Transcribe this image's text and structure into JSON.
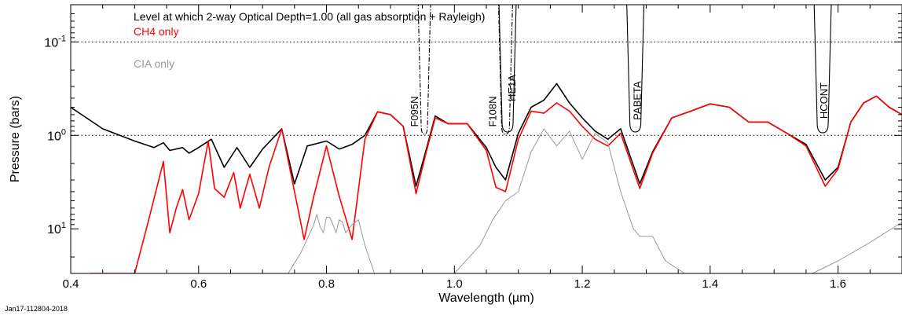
{
  "chart_data": {
    "type": "line",
    "title": "Level at which 2-way Optical Depth=1.00 (all gas absorption + Rayleigh)",
    "xlabel": "Wavelength (µm)",
    "ylabel": "Pressure (bars)",
    "xlim": [
      0.4,
      1.7
    ],
    "ylim_log_bars": [
      0.04,
      30
    ],
    "y_reversed": true,
    "y_scale": "log",
    "grid": false,
    "x_ticks": [
      0.4,
      0.6,
      0.8,
      1.0,
      1.2,
      1.4,
      1.6
    ],
    "x_tick_labels": [
      "0.4",
      "0.6",
      "0.8",
      "1.0",
      "1.2",
      "1.4",
      "1.6"
    ],
    "y_tick_labels": [
      {
        "value": 0.1,
        "base": "10",
        "exp": "-1"
      },
      {
        "value": 1,
        "base": "10",
        "exp": "0"
      },
      {
        "value": 10,
        "base": "10",
        "exp": "1"
      }
    ],
    "reference_lines": [
      {
        "pressure": 0.1,
        "style": "dotted"
      },
      {
        "pressure": 1.0,
        "style": "dotted"
      }
    ],
    "series": [
      {
        "name": "all gas absorption + Rayleigh",
        "color": "#000000",
        "x": [
          0.4,
          0.45,
          0.5,
          0.53,
          0.545,
          0.555,
          0.575,
          0.585,
          0.6,
          0.62,
          0.64,
          0.66,
          0.68,
          0.7,
          0.73,
          0.75,
          0.77,
          0.8,
          0.82,
          0.84,
          0.86,
          0.88,
          0.9,
          0.92,
          0.94,
          0.955,
          0.97,
          0.99,
          1.02,
          1.05,
          1.065,
          1.08,
          1.1,
          1.12,
          1.14,
          1.16,
          1.18,
          1.2,
          1.22,
          1.24,
          1.26,
          1.29,
          1.31,
          1.34,
          1.37,
          1.4,
          1.43,
          1.46,
          1.49,
          1.52,
          1.55,
          1.58,
          1.6,
          1.62,
          1.64,
          1.66,
          1.68,
          1.7
        ],
        "y": [
          0.5,
          0.85,
          1.15,
          1.35,
          1.2,
          1.45,
          1.35,
          1.55,
          1.35,
          1.1,
          2.2,
          1.35,
          2.2,
          1.4,
          0.85,
          3.3,
          1.3,
          1.15,
          1.4,
          1.25,
          1.0,
          0.56,
          0.6,
          0.8,
          3.5,
          1.5,
          0.62,
          0.75,
          0.75,
          1.35,
          2.2,
          3.0,
          0.95,
          0.5,
          0.42,
          0.28,
          0.45,
          0.65,
          0.9,
          1.1,
          0.85,
          3.3,
          1.5,
          0.65,
          0.55,
          0.46,
          0.5,
          0.72,
          0.72,
          0.95,
          1.25,
          3.0,
          2.2,
          0.72,
          0.45,
          0.38,
          0.5,
          0.6
        ]
      },
      {
        "name": "CH4 only",
        "color": "#ff0000",
        "x": [
          0.43,
          0.47,
          0.5,
          0.52,
          0.545,
          0.555,
          0.565,
          0.575,
          0.585,
          0.6,
          0.615,
          0.625,
          0.64,
          0.655,
          0.665,
          0.68,
          0.695,
          0.71,
          0.73,
          0.75,
          0.765,
          0.78,
          0.8,
          0.82,
          0.84,
          0.86,
          0.88,
          0.9,
          0.92,
          0.94,
          0.955,
          0.97,
          0.99,
          1.02,
          1.05,
          1.065,
          1.08,
          1.1,
          1.12,
          1.14,
          1.16,
          1.18,
          1.2,
          1.22,
          1.24,
          1.26,
          1.29,
          1.31,
          1.34,
          1.37,
          1.4,
          1.43,
          1.46,
          1.49,
          1.52,
          1.55,
          1.58,
          1.6,
          1.62,
          1.64,
          1.66,
          1.68,
          1.7
        ],
        "y": [
          30,
          30,
          30,
          9,
          1.9,
          11,
          6,
          3.8,
          8,
          4.2,
          1.15,
          3.7,
          4.6,
          2.5,
          6,
          2.6,
          6,
          2.2,
          0.85,
          4,
          13,
          4.5,
          1.3,
          4.5,
          13,
          1.1,
          0.56,
          0.6,
          0.8,
          4.2,
          1.6,
          0.65,
          0.75,
          0.75,
          1.45,
          3.6,
          4.0,
          1.1,
          0.55,
          0.58,
          0.45,
          0.55,
          0.8,
          1.1,
          1.3,
          0.95,
          3.7,
          1.55,
          0.65,
          0.55,
          0.46,
          0.5,
          0.72,
          0.72,
          0.95,
          1.3,
          3.5,
          2.3,
          0.72,
          0.45,
          0.38,
          0.5,
          0.6
        ]
      },
      {
        "name": "CIA only",
        "color": "#999999",
        "x": [
          0.74,
          0.76,
          0.78,
          0.785,
          0.79,
          0.795,
          0.8,
          0.805,
          0.81,
          0.815,
          0.82,
          0.825,
          0.83,
          0.835,
          0.84,
          0.845,
          0.85,
          0.86,
          0.875,
          0.9,
          1.0,
          1.04,
          1.06,
          1.08,
          1.1,
          1.12,
          1.14,
          1.16,
          1.18,
          1.2,
          1.22,
          1.24,
          1.26,
          1.28,
          1.29,
          1.31,
          1.33,
          1.36,
          1.42,
          1.5,
          1.56,
          1.6,
          1.65,
          1.7
        ],
        "y": [
          30,
          18,
          9,
          7,
          9.5,
          11,
          7.5,
          7.5,
          9,
          11,
          8,
          8.5,
          11,
          10,
          9,
          8.5,
          8,
          15,
          30,
          30,
          30,
          15,
          8,
          5,
          4,
          1.5,
          0.85,
          1.3,
          0.9,
          1.8,
          0.95,
          1.2,
          4,
          10,
          12,
          12,
          22,
          30,
          30,
          30,
          30,
          22,
          14,
          8.5
        ]
      }
    ],
    "filters": [
      {
        "label": "F095N",
        "center": 0.953,
        "style": "dashdot"
      },
      {
        "label": "F108N",
        "center": 1.08,
        "style": "dashdot"
      },
      {
        "label": "HE1A",
        "center": 1.0832,
        "style": "solid"
      },
      {
        "label": "PABETA",
        "center": 1.283,
        "style": "solid"
      },
      {
        "label": "HCONT",
        "center": 1.576,
        "style": "solid"
      }
    ],
    "legend": [
      {
        "text": "CH4 only",
        "color": "#ff0000"
      },
      {
        "text": "CIA only",
        "color": "#999999"
      }
    ],
    "legend_placement": "top-left"
  },
  "footer": {
    "timestamp": "Jan17-112804-2018"
  }
}
